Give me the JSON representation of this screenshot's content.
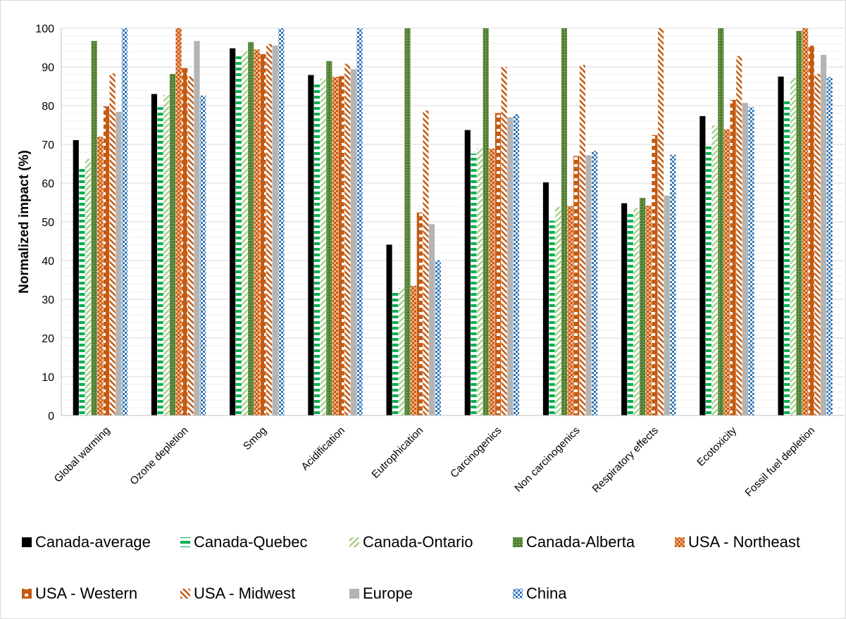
{
  "chart_data": {
    "type": "bar",
    "title": "",
    "xlabel": "",
    "ylabel": "Normalized impact (%)",
    "ylim": [
      0,
      100
    ],
    "yticks": [
      0,
      10,
      20,
      30,
      40,
      50,
      60,
      70,
      80,
      90,
      100
    ],
    "grid": "horizontal",
    "legend_position": "bottom",
    "categories": [
      "Global warming",
      "Ozone depletion",
      "Smog",
      "Acidification",
      "Eutrophication",
      "Carcinogenics",
      "Non carcinogenics",
      "Respiratory effects",
      "Ecotoxicity",
      "Fossil fuel depletion"
    ],
    "series": [
      {
        "name": "Canada-average",
        "color": "#000000",
        "pattern": "solid",
        "values": [
          71.1,
          83.0,
          94.8,
          87.9,
          44.1,
          73.7,
          60.2,
          54.8,
          77.3,
          87.5
        ]
      },
      {
        "name": "Canada-Quebec",
        "color": "#00b050",
        "pattern": "hstripe",
        "values": [
          63.9,
          79.6,
          93.2,
          86.2,
          32.1,
          67.6,
          50.3,
          52.4,
          69.9,
          81.8
        ]
      },
      {
        "name": "Canada-Ontario",
        "color": "#a9d08e",
        "pattern": "diag",
        "values": [
          66.3,
          82.8,
          94.1,
          87.0,
          32.8,
          69.0,
          53.8,
          53.6,
          74.9,
          87.2
        ]
      },
      {
        "name": "Canada-Alberta",
        "color": "#548235",
        "pattern": "dots",
        "values": [
          96.7,
          88.2,
          96.4,
          91.5,
          100,
          100,
          100,
          56.2,
          100,
          99.3
        ]
      },
      {
        "name": "USA - Northeast",
        "color": "#c55a11",
        "pattern": "check",
        "values": [
          72.0,
          100,
          94.5,
          87.4,
          33.5,
          68.9,
          54.1,
          54.2,
          73.9,
          100
        ]
      },
      {
        "name": "USA - Western",
        "color": "#c55a11",
        "pattern": "dash",
        "values": [
          79.8,
          89.7,
          93.3,
          87.6,
          52.4,
          78.1,
          67.0,
          72.4,
          81.5,
          95.5
        ]
      },
      {
        "name": "USA - Midwest",
        "color": "#c55a11",
        "pattern": "rdiag",
        "values": [
          88.3,
          87.5,
          95.9,
          90.8,
          78.7,
          90.0,
          90.5,
          100,
          92.8,
          88.2
        ]
      },
      {
        "name": "Europe",
        "color": "#b4b4b4",
        "pattern": "solid",
        "values": [
          78.4,
          96.7,
          95.5,
          89.4,
          49.4,
          77.0,
          67.2,
          56.8,
          80.7,
          93.1
        ]
      },
      {
        "name": "China",
        "color": "#2e75b6",
        "pattern": "checkblue",
        "values": [
          100,
          82.6,
          100,
          100,
          40.1,
          77.8,
          68.3,
          67.3,
          79.6,
          87.4
        ]
      }
    ]
  }
}
